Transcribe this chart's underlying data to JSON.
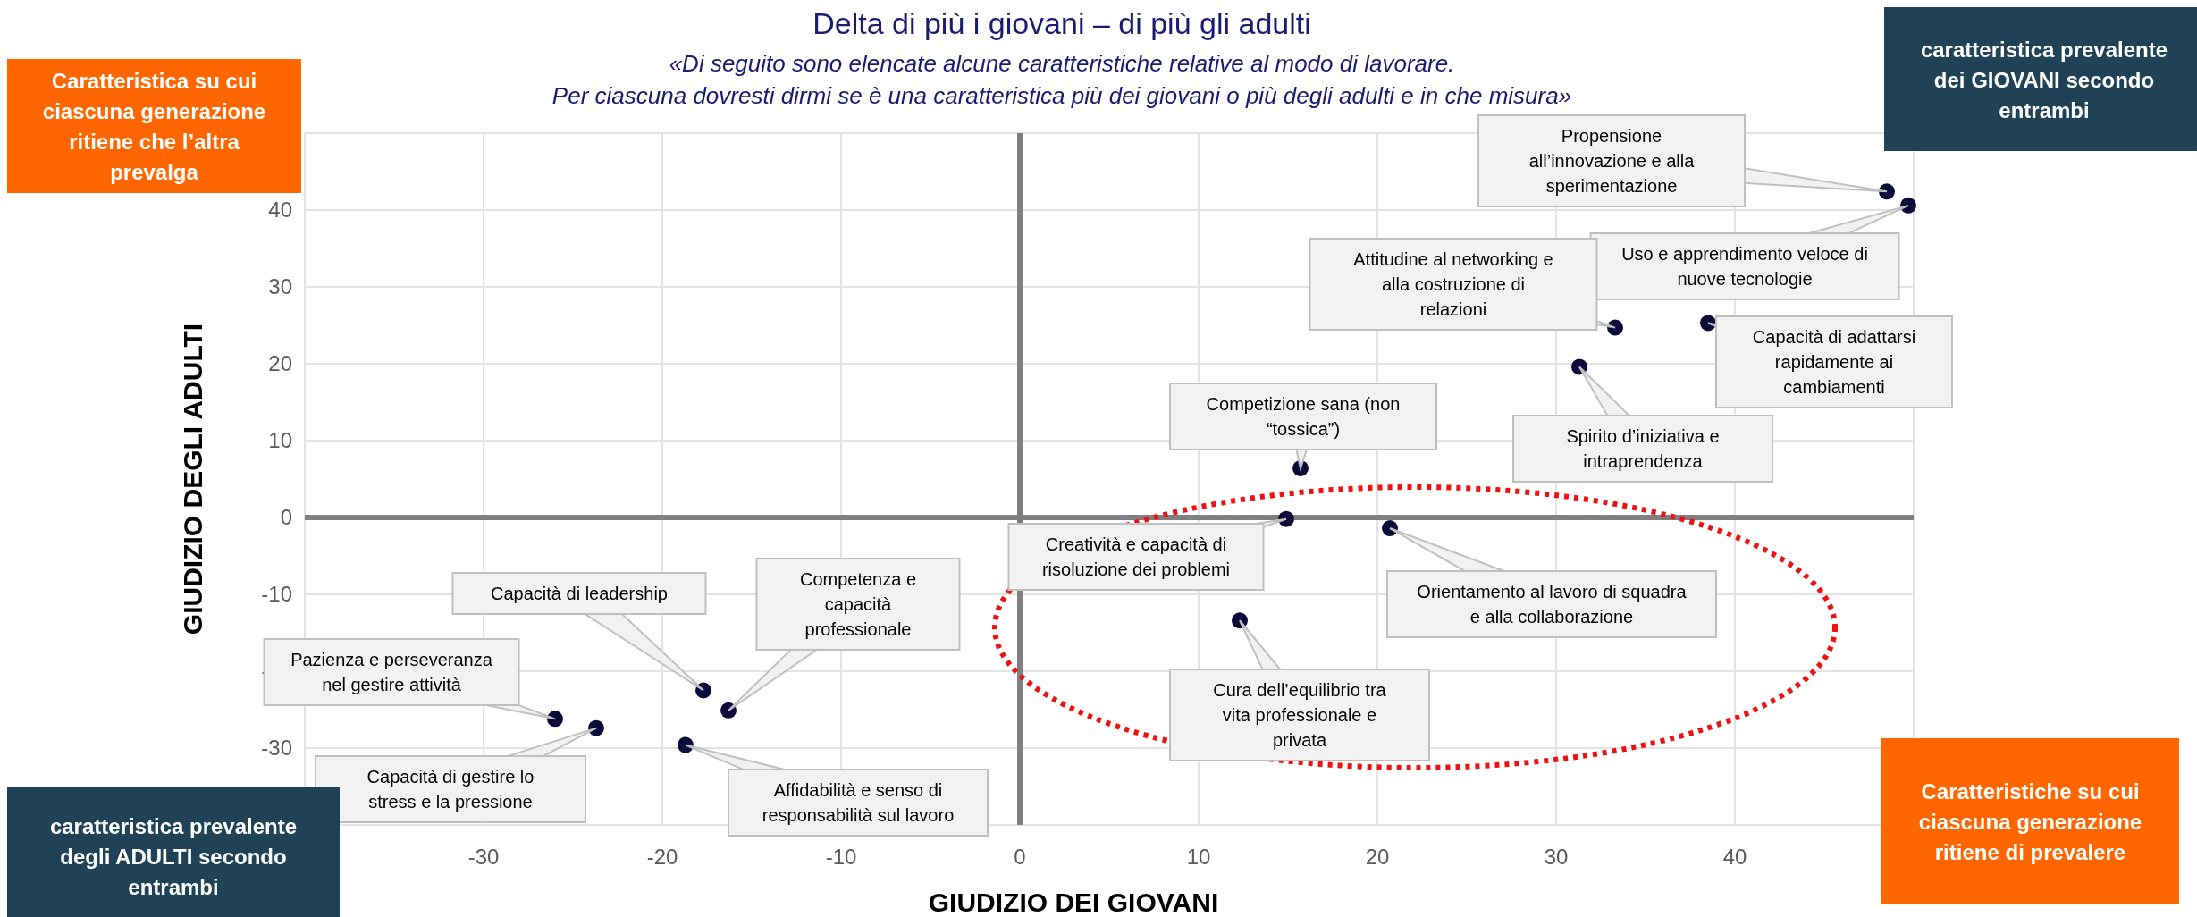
{
  "chart_data": {
    "type": "scatter",
    "title": "Delta di più i giovani – di più gli adulti",
    "subtitle": "«Di seguito sono elencate alcune caratteristiche relative al modo di lavorare. Per ciascuna dovresti dirmi se è una caratteristica più dei giovani o più degli adulti e in che misura»",
    "xlabel": "GIUDIZIO DEI GIOVANI",
    "ylabel": "GIUDIZIO DEGLI ADULTI",
    "x": [
      -26,
      -23.7,
      -17.7,
      -16.3,
      -18.7,
      48.5,
      49.7,
      33.3,
      38.5,
      31.3,
      15.7,
      14.9,
      20.7,
      12.3
    ],
    "values": [
      -26.2,
      -27.4,
      -22.5,
      -25.1,
      -29.6,
      42.4,
      40.6,
      24.7,
      25.3,
      19.6,
      6.4,
      -0.2,
      -1.4,
      -13.4
    ],
    "color": "#0d0a3a",
    "marker": "circle",
    "grid": true,
    "xlim": [
      -40,
      50
    ],
    "ylim": [
      -40,
      50
    ],
    "xticks": [
      -30,
      -20,
      -10,
      0,
      10,
      20,
      30,
      40
    ],
    "yticks": [
      -30,
      -20,
      -10,
      0,
      10,
      20,
      30,
      40
    ],
    "annotations": [
      {
        "text": "Pazienza e perseveranza nel gestire attività",
        "x": -26,
        "y": -26.2
      },
      {
        "text": "Capacità di gestire lo stress e la pressione",
        "x": -23.7,
        "y": -27.4
      },
      "Capacità di leadership",
      "Competenza e capacità professionale",
      {
        "text": "Affidabilità e senso di responsabilità sul lavoro",
        "x": -18.7,
        "y": -29.6
      },
      {
        "text": "Propensione all’innovazione e alla sperimentazione",
        "x": 48.5,
        "y": 42.4
      },
      {
        "text": "Uso e apprendimento veloce di nuove tecnologie",
        "x": 49.7,
        "y": 40.6
      },
      {
        "text": "Attitudine al networking e alla costruzione di relazioni",
        "x": 33.3,
        "y": 24.7
      },
      {
        "text": "Capacità di adattarsi rapidamente ai cambiamenti",
        "x": 38.5,
        "y": 25.3
      },
      "Spirito d’iniziativa e intraprendenza",
      {
        "text": "Competizione sana (non “tossica”)",
        "x": 15.7,
        "y": 6.4
      },
      {
        "text": "Creatività e capacità di risoluzione dei problemi",
        "x": 14.9,
        "y": -0.2
      },
      "Orientamento al lavoro di squadra e alla collaborazione",
      "Cura dell’equilibrio tra vita professionale e privata",
      "Caratteristica su cui ciascuna generazione ritiene che l’altra prevalga",
      "caratteristica prevalente dei GIOVANI secondo entrambi",
      "caratteristica prevalente degli ADULTI secondo entrambi",
      "Caratteristiche su cui ciascuna generazione ritiene di prevalere"
    ]
  }
}
